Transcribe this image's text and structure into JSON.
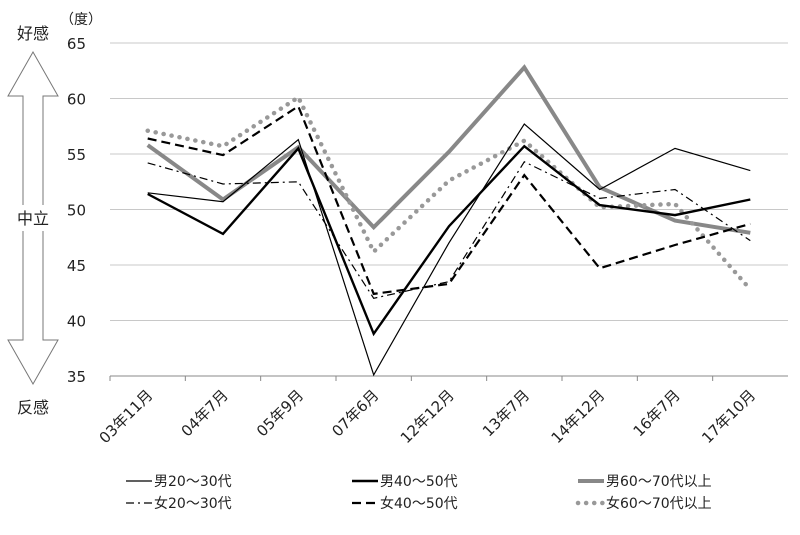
{
  "chart_data": {
    "type": "line",
    "unit_label": "（度）",
    "side_labels": {
      "top": "好感",
      "middle": "中立",
      "bottom": "反感"
    },
    "categories": [
      "03年11月",
      "04年7月",
      "05年9月",
      "07年6月",
      "12年12月",
      "13年7月",
      "14年12月",
      "16年7月",
      "17年10月"
    ],
    "ylim": [
      35,
      65
    ],
    "yticks": [
      35,
      40,
      45,
      50,
      55,
      60,
      65
    ],
    "grid": true,
    "legend_position": "bottom",
    "series": [
      {
        "name": "男20〜30代",
        "values": [
          51.5,
          50.7,
          56.3,
          35.1,
          47.0,
          57.7,
          51.8,
          55.5,
          53.5
        ],
        "style": "thin",
        "color": "#000000"
      },
      {
        "name": "男40〜50代",
        "values": [
          51.4,
          47.8,
          55.5,
          38.8,
          48.5,
          55.7,
          50.4,
          49.5,
          50.9
        ],
        "style": "thick",
        "color": "#000000"
      },
      {
        "name": "男60〜70代以上",
        "values": [
          55.8,
          50.9,
          55.6,
          48.4,
          55.2,
          62.8,
          52.0,
          49.0,
          47.9
        ],
        "style": "gray",
        "color": "#888888"
      },
      {
        "name": "女20〜30代",
        "values": [
          54.2,
          52.3,
          52.5,
          42.0,
          43.5,
          54.3,
          51.0,
          51.8,
          47.2
        ],
        "style": "dashdot",
        "color": "#000000"
      },
      {
        "name": "女40〜50代",
        "values": [
          56.4,
          54.9,
          59.3,
          42.4,
          43.3,
          53.1,
          44.7,
          46.8,
          48.7
        ],
        "style": "dashed",
        "color": "#000000"
      },
      {
        "name": "女60〜70代以上",
        "values": [
          57.1,
          55.7,
          60.1,
          46.2,
          52.6,
          56.2,
          50.2,
          50.5,
          42.8
        ],
        "style": "dotted",
        "color": "#999999"
      }
    ]
  }
}
